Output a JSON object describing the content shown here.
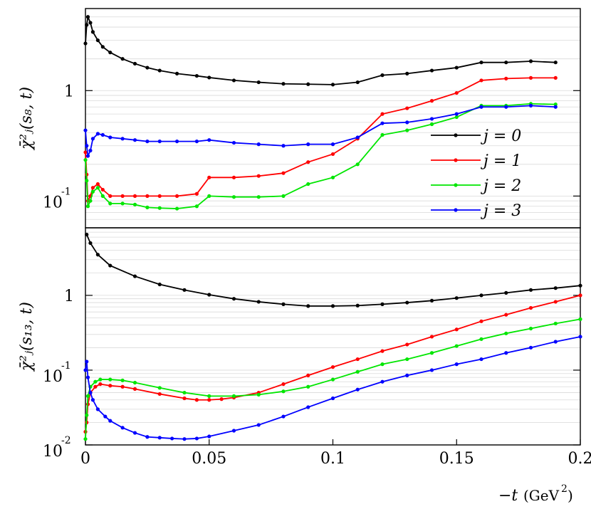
{
  "chart_data": [
    {
      "type": "line",
      "panel": "top",
      "ylabel": "χ̄²ⱼ(s₈, t)",
      "y_scale": "log",
      "ylim": [
        0.05,
        6
      ],
      "y_ticks": [
        {
          "value": 1,
          "label": "1",
          "exp": ""
        },
        {
          "value": 0.1,
          "label": "10",
          "exp": "-1"
        }
      ],
      "xlim": [
        0,
        0.2
      ],
      "grid": "horizontal minor",
      "legend": "middle-right",
      "series": [
        {
          "name": "j = 0",
          "color": "#000000",
          "x": [
            0,
            0.0005,
            0.001,
            0.002,
            0.003,
            0.005,
            0.007,
            0.01,
            0.015,
            0.02,
            0.025,
            0.03,
            0.037,
            0.045,
            0.05,
            0.06,
            0.07,
            0.08,
            0.09,
            0.1,
            0.11,
            0.12,
            0.13,
            0.14,
            0.15,
            0.16,
            0.17,
            0.18,
            0.19
          ],
          "y": [
            2.8,
            4.2,
            5.0,
            4.4,
            3.6,
            3.0,
            2.6,
            2.3,
            2.0,
            1.8,
            1.65,
            1.55,
            1.45,
            1.38,
            1.33,
            1.25,
            1.2,
            1.16,
            1.15,
            1.14,
            1.2,
            1.4,
            1.45,
            1.55,
            1.65,
            1.85,
            1.85,
            1.9,
            1.85
          ]
        },
        {
          "name": "j = 1",
          "color": "#ff0000",
          "x": [
            0,
            0.0005,
            0.001,
            0.002,
            0.003,
            0.005,
            0.007,
            0.01,
            0.015,
            0.02,
            0.025,
            0.03,
            0.037,
            0.045,
            0.05,
            0.06,
            0.07,
            0.08,
            0.09,
            0.1,
            0.11,
            0.12,
            0.13,
            0.14,
            0.15,
            0.16,
            0.17,
            0.18,
            0.19
          ],
          "y": [
            0.26,
            0.16,
            0.09,
            0.1,
            0.12,
            0.13,
            0.115,
            0.1,
            0.1,
            0.1,
            0.1,
            0.1,
            0.1,
            0.105,
            0.15,
            0.15,
            0.155,
            0.165,
            0.21,
            0.25,
            0.35,
            0.6,
            0.68,
            0.8,
            0.95,
            1.25,
            1.3,
            1.32,
            1.32
          ]
        },
        {
          "name": "j = 2",
          "color": "#00e600",
          "x": [
            0,
            0.0005,
            0.001,
            0.002,
            0.003,
            0.005,
            0.007,
            0.01,
            0.015,
            0.02,
            0.025,
            0.03,
            0.037,
            0.045,
            0.05,
            0.06,
            0.07,
            0.08,
            0.09,
            0.1,
            0.11,
            0.12,
            0.13,
            0.14,
            0.15,
            0.16,
            0.17,
            0.18,
            0.19
          ],
          "y": [
            0.22,
            0.14,
            0.08,
            0.09,
            0.11,
            0.12,
            0.1,
            0.085,
            0.085,
            0.083,
            0.078,
            0.077,
            0.076,
            0.08,
            0.1,
            0.098,
            0.098,
            0.1,
            0.13,
            0.15,
            0.2,
            0.38,
            0.42,
            0.48,
            0.56,
            0.72,
            0.72,
            0.75,
            0.74
          ]
        },
        {
          "name": "j = 3",
          "color": "#0000ff",
          "x": [
            0,
            0.0005,
            0.001,
            0.002,
            0.003,
            0.005,
            0.007,
            0.01,
            0.015,
            0.02,
            0.025,
            0.03,
            0.037,
            0.045,
            0.05,
            0.06,
            0.07,
            0.08,
            0.09,
            0.1,
            0.11,
            0.12,
            0.13,
            0.14,
            0.15,
            0.16,
            0.17,
            0.18,
            0.19
          ],
          "y": [
            0.42,
            0.3,
            0.24,
            0.27,
            0.35,
            0.39,
            0.38,
            0.36,
            0.35,
            0.34,
            0.33,
            0.33,
            0.33,
            0.33,
            0.34,
            0.32,
            0.31,
            0.3,
            0.31,
            0.31,
            0.36,
            0.49,
            0.5,
            0.54,
            0.6,
            0.7,
            0.7,
            0.72,
            0.7
          ]
        }
      ]
    },
    {
      "type": "line",
      "panel": "bottom",
      "ylabel": "χ̄²ⱼ(s₁₃, t)",
      "xlabel": "−t (GeV²)",
      "y_scale": "log",
      "ylim": [
        0.01,
        8
      ],
      "y_ticks": [
        {
          "value": 1,
          "label": "1",
          "exp": ""
        },
        {
          "value": 0.1,
          "label": "10",
          "exp": "-1"
        },
        {
          "value": 0.01,
          "label": "10",
          "exp": "-2"
        }
      ],
      "xlim": [
        0,
        0.2
      ],
      "x_ticks": [
        "0",
        "0.05",
        "0.1",
        "0.15",
        "0.2"
      ],
      "grid": "horizontal minor",
      "series": [
        {
          "name": "j = 0",
          "color": "#000000",
          "x": [
            0.0005,
            0.002,
            0.005,
            0.01,
            0.02,
            0.03,
            0.04,
            0.05,
            0.06,
            0.07,
            0.08,
            0.09,
            0.1,
            0.11,
            0.12,
            0.13,
            0.14,
            0.15,
            0.16,
            0.17,
            0.18,
            0.19,
            0.2
          ],
          "y": [
            6.5,
            5.0,
            3.5,
            2.5,
            1.8,
            1.4,
            1.18,
            1.02,
            0.9,
            0.82,
            0.76,
            0.72,
            0.72,
            0.73,
            0.76,
            0.8,
            0.85,
            0.92,
            1.0,
            1.08,
            1.18,
            1.25,
            1.35
          ]
        },
        {
          "name": "j = 1",
          "color": "#ff0000",
          "x": [
            0,
            0.0005,
            0.001,
            0.002,
            0.004,
            0.006,
            0.01,
            0.015,
            0.02,
            0.03,
            0.04,
            0.045,
            0.05,
            0.055,
            0.06,
            0.07,
            0.08,
            0.09,
            0.1,
            0.11,
            0.12,
            0.13,
            0.14,
            0.15,
            0.16,
            0.17,
            0.18,
            0.19,
            0.2
          ],
          "y": [
            0.015,
            0.02,
            0.035,
            0.05,
            0.06,
            0.065,
            0.062,
            0.06,
            0.056,
            0.048,
            0.042,
            0.04,
            0.04,
            0.041,
            0.043,
            0.05,
            0.065,
            0.085,
            0.11,
            0.14,
            0.18,
            0.22,
            0.28,
            0.35,
            0.45,
            0.55,
            0.68,
            0.82,
            1.0
          ]
        },
        {
          "name": "j = 2",
          "color": "#00e600",
          "x": [
            0,
            0.0005,
            0.001,
            0.002,
            0.004,
            0.006,
            0.01,
            0.015,
            0.02,
            0.03,
            0.04,
            0.05,
            0.06,
            0.07,
            0.08,
            0.09,
            0.1,
            0.11,
            0.12,
            0.13,
            0.14,
            0.15,
            0.16,
            0.17,
            0.18,
            0.19,
            0.2
          ],
          "y": [
            0.012,
            0.025,
            0.045,
            0.06,
            0.07,
            0.075,
            0.075,
            0.073,
            0.068,
            0.058,
            0.05,
            0.045,
            0.045,
            0.047,
            0.052,
            0.06,
            0.075,
            0.095,
            0.12,
            0.14,
            0.17,
            0.21,
            0.26,
            0.31,
            0.36,
            0.42,
            0.48
          ]
        },
        {
          "name": "j = 3",
          "color": "#0000ff",
          "x": [
            0,
            0.0005,
            0.001,
            0.002,
            0.003,
            0.005,
            0.008,
            0.01,
            0.015,
            0.02,
            0.025,
            0.03,
            0.035,
            0.04,
            0.045,
            0.05,
            0.06,
            0.07,
            0.08,
            0.09,
            0.1,
            0.11,
            0.12,
            0.13,
            0.14,
            0.15,
            0.16,
            0.17,
            0.18,
            0.19,
            0.2
          ],
          "y": [
            0.1,
            0.13,
            0.08,
            0.05,
            0.04,
            0.03,
            0.024,
            0.021,
            0.017,
            0.0145,
            0.0128,
            0.0125,
            0.0122,
            0.012,
            0.0122,
            0.013,
            0.0155,
            0.0185,
            0.024,
            0.032,
            0.042,
            0.055,
            0.07,
            0.085,
            0.1,
            0.12,
            0.14,
            0.17,
            0.2,
            0.24,
            0.28
          ]
        }
      ]
    }
  ]
}
